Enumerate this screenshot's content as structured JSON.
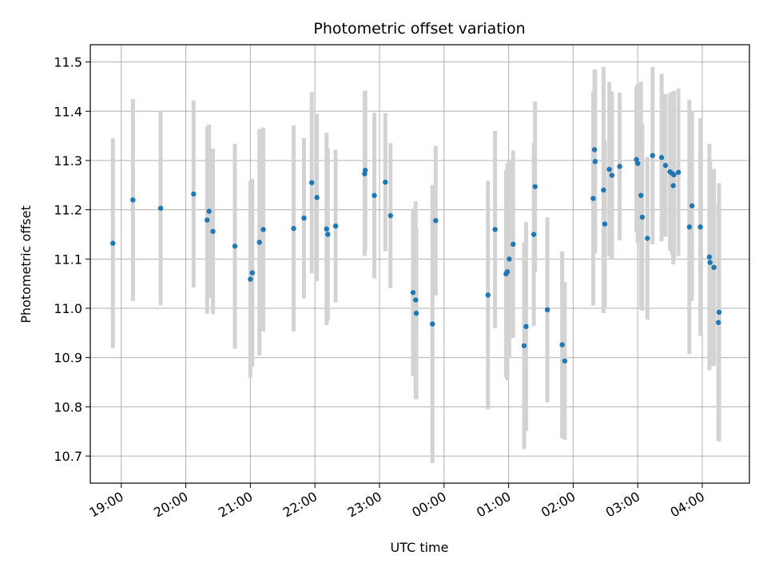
{
  "chart_data": {
    "type": "scatter",
    "title": "Photometric offset variation",
    "xlabel": "UTC time",
    "ylabel": "Photometric offset",
    "x_ticks": [
      "19:00",
      "20:00",
      "21:00",
      "22:00",
      "23:00",
      "00:00",
      "01:00",
      "02:00",
      "03:00",
      "04:00"
    ],
    "x_tick_hours": [
      19,
      20,
      21,
      22,
      23,
      24,
      25,
      26,
      27,
      28
    ],
    "y_ticks": [
      "10.7",
      "10.8",
      "10.9",
      "11.0",
      "11.1",
      "11.2",
      "11.3",
      "11.4",
      "11.5"
    ],
    "xlim": [
      18.52,
      28.73
    ],
    "ylim": [
      10.645,
      11.535
    ],
    "grid": true,
    "point_color": "#1f77b4",
    "errorbar_color": "#d3d3d3",
    "series": [
      {
        "x": [
          18.87,
          19.18,
          19.61,
          20.12,
          20.33,
          20.36,
          20.42,
          20.76,
          21.0,
          21.03,
          21.14,
          21.2,
          21.67,
          21.83,
          21.95,
          22.03,
          22.18,
          22.2,
          22.32,
          22.77,
          22.78,
          22.92,
          23.09,
          23.17,
          23.52,
          23.56,
          23.57,
          23.82,
          23.87,
          24.68,
          24.79,
          24.96,
          24.98,
          25.01,
          25.07,
          25.24,
          25.27,
          25.39,
          25.41,
          25.6,
          25.83,
          25.87,
          26.31,
          26.33,
          26.34,
          26.47,
          26.49,
          26.56,
          26.6,
          26.72,
          26.98,
          27.0,
          27.05,
          27.07,
          27.15,
          27.23,
          27.37,
          27.43,
          27.5,
          27.53,
          27.55,
          27.56,
          27.63,
          27.8,
          27.84,
          27.97,
          28.11,
          28.12,
          28.18,
          28.25,
          28.26
        ],
        "y": [
          11.132,
          11.22,
          11.203,
          11.232,
          11.179,
          11.197,
          11.156,
          11.126,
          11.059,
          11.072,
          11.134,
          11.16,
          11.162,
          11.183,
          11.255,
          11.225,
          11.161,
          11.15,
          11.167,
          11.273,
          11.28,
          11.229,
          11.256,
          11.188,
          11.032,
          11.017,
          10.99,
          10.968,
          11.178,
          11.027,
          11.16,
          11.07,
          11.074,
          11.1,
          11.13,
          10.924,
          10.963,
          11.15,
          11.247,
          10.997,
          10.926,
          10.893,
          11.223,
          11.322,
          11.298,
          11.24,
          11.171,
          11.282,
          11.27,
          11.288,
          11.302,
          11.294,
          11.229,
          11.185,
          11.142,
          11.31,
          11.306,
          11.29,
          11.277,
          11.274,
          11.249,
          11.271,
          11.276,
          11.165,
          11.208,
          11.165,
          11.104,
          11.093,
          11.083,
          10.971,
          10.992
        ],
        "err": [
          0.213,
          0.205,
          0.197,
          0.19,
          0.19,
          0.176,
          0.168,
          0.208,
          0.2,
          0.191,
          0.23,
          0.207,
          0.209,
          0.163,
          0.184,
          0.17,
          0.195,
          0.175,
          0.155,
          0.167,
          0.162,
          0.168,
          0.14,
          0.147,
          0.17,
          0.2,
          0.175,
          0.282,
          0.152,
          0.232,
          0.2,
          0.21,
          0.22,
          0.2,
          0.19,
          0.21,
          0.212,
          0.186,
          0.173,
          0.188,
          0.19,
          0.16,
          0.217,
          0.162,
          0.187,
          0.25,
          0.171,
          0.177,
          0.17,
          0.15,
          0.148,
          0.162,
          0.231,
          0.19,
          0.165,
          0.18,
          0.17,
          0.145,
          0.16,
          0.165,
          0.16,
          0.17,
          0.17,
          0.258,
          0.193,
          0.221,
          0.23,
          0.21,
          0.2,
          0.24,
          0.262
        ]
      }
    ]
  }
}
